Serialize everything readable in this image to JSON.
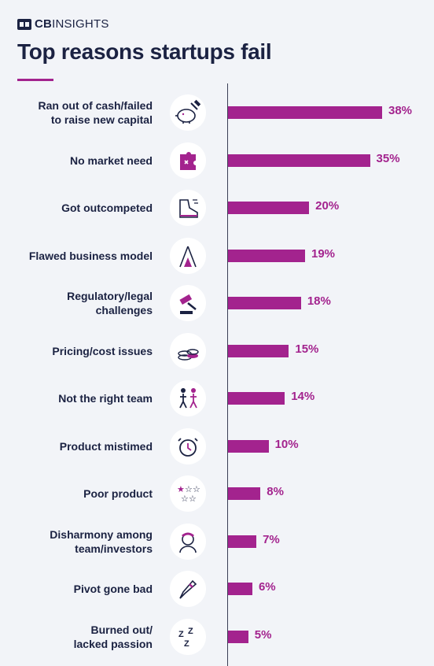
{
  "header": {
    "brand_bold": "CB",
    "brand_rest": "INSIGHTS",
    "title": "Top reasons startups fail"
  },
  "colors": {
    "accent": "#a3238e",
    "text": "#1b2242",
    "background": "#f2f4f8"
  },
  "chart_data": {
    "type": "bar",
    "orientation": "horizontal",
    "title": "Top reasons startups fail",
    "value_unit": "%",
    "xlim": [
      0,
      38
    ],
    "categories": [
      "Ran out of cash/failed\nto raise new capital",
      "No market need",
      "Got outcompeted",
      "Flawed business model",
      "Regulatory/legal\nchallenges",
      "Pricing/cost issues",
      "Not the right team",
      "Product mistimed",
      "Poor product",
      "Disharmony among\nteam/investors",
      "Pivot gone bad",
      "Burned out/\nlacked passion"
    ],
    "values": [
      38,
      35,
      20,
      19,
      18,
      15,
      14,
      10,
      8,
      7,
      6,
      5
    ],
    "value_labels": [
      "38%",
      "35%",
      "20%",
      "19%",
      "18%",
      "15%",
      "14%",
      "10%",
      "8%",
      "7%",
      "6%",
      "5%"
    ],
    "icons": [
      "piggy-bank-hammer-icon",
      "puzzle-piece-icon",
      "sneaker-icon",
      "house-of-cards-icon",
      "gavel-icon",
      "coin-stack-icon",
      "team-split-icon",
      "alarm-clock-icon",
      "star-rating-icon",
      "frustrated-person-icon",
      "broken-pencil-icon",
      "sleep-z-icon"
    ],
    "grid": false,
    "legend": "none"
  }
}
